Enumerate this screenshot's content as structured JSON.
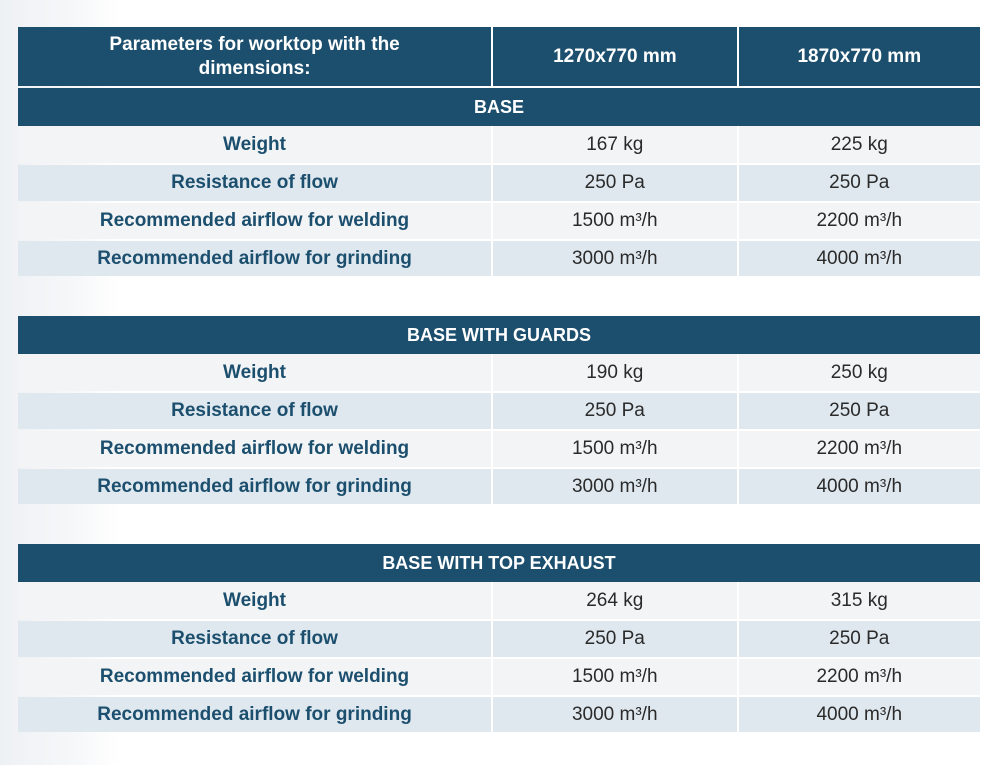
{
  "header": {
    "param_label": "Parameters for worktop with the dimensions:",
    "col1": "1270x770 mm",
    "col2": "1870x770 mm"
  },
  "sections": [
    {
      "title": "BASE",
      "rows": [
        {
          "label": "Weight",
          "v1": "167 kg",
          "v2": "225 kg"
        },
        {
          "label": "Resistance of flow",
          "v1": "250 Pa",
          "v2": "250 Pa"
        },
        {
          "label": "Recommended airflow for welding",
          "v1": "1500 m³/h",
          "v2": "2200 m³/h"
        },
        {
          "label": "Recommended airflow for grinding",
          "v1": "3000 m³/h",
          "v2": "4000 m³/h"
        }
      ]
    },
    {
      "title": "BASE WITH GUARDS",
      "rows": [
        {
          "label": "Weight",
          "v1": "190 kg",
          "v2": "250 kg"
        },
        {
          "label": "Resistance of flow",
          "v1": "250 Pa",
          "v2": "250 Pa"
        },
        {
          "label": "Recommended airflow for welding",
          "v1": "1500 m³/h",
          "v2": "2200 m³/h"
        },
        {
          "label": "Recommended airflow for grinding",
          "v1": "3000 m³/h",
          "v2": "4000 m³/h"
        }
      ]
    },
    {
      "title": "BASE WITH TOP EXHAUST",
      "rows": [
        {
          "label": "Weight",
          "v1": "264 kg",
          "v2": "315 kg"
        },
        {
          "label": "Resistance of flow",
          "v1": "250 Pa",
          "v2": "250 Pa"
        },
        {
          "label": "Recommended airflow for welding",
          "v1": "1500 m³/h",
          "v2": "2200 m³/h"
        },
        {
          "label": "Recommended airflow for grinding",
          "v1": "3000 m³/h",
          "v2": "4000 m³/h"
        }
      ]
    }
  ],
  "colors": {
    "header_bg": "#1c4f6e",
    "row_light": "#f2f4f6",
    "row_dark": "#dfe8ef",
    "param_text": "#1c4f6e"
  }
}
